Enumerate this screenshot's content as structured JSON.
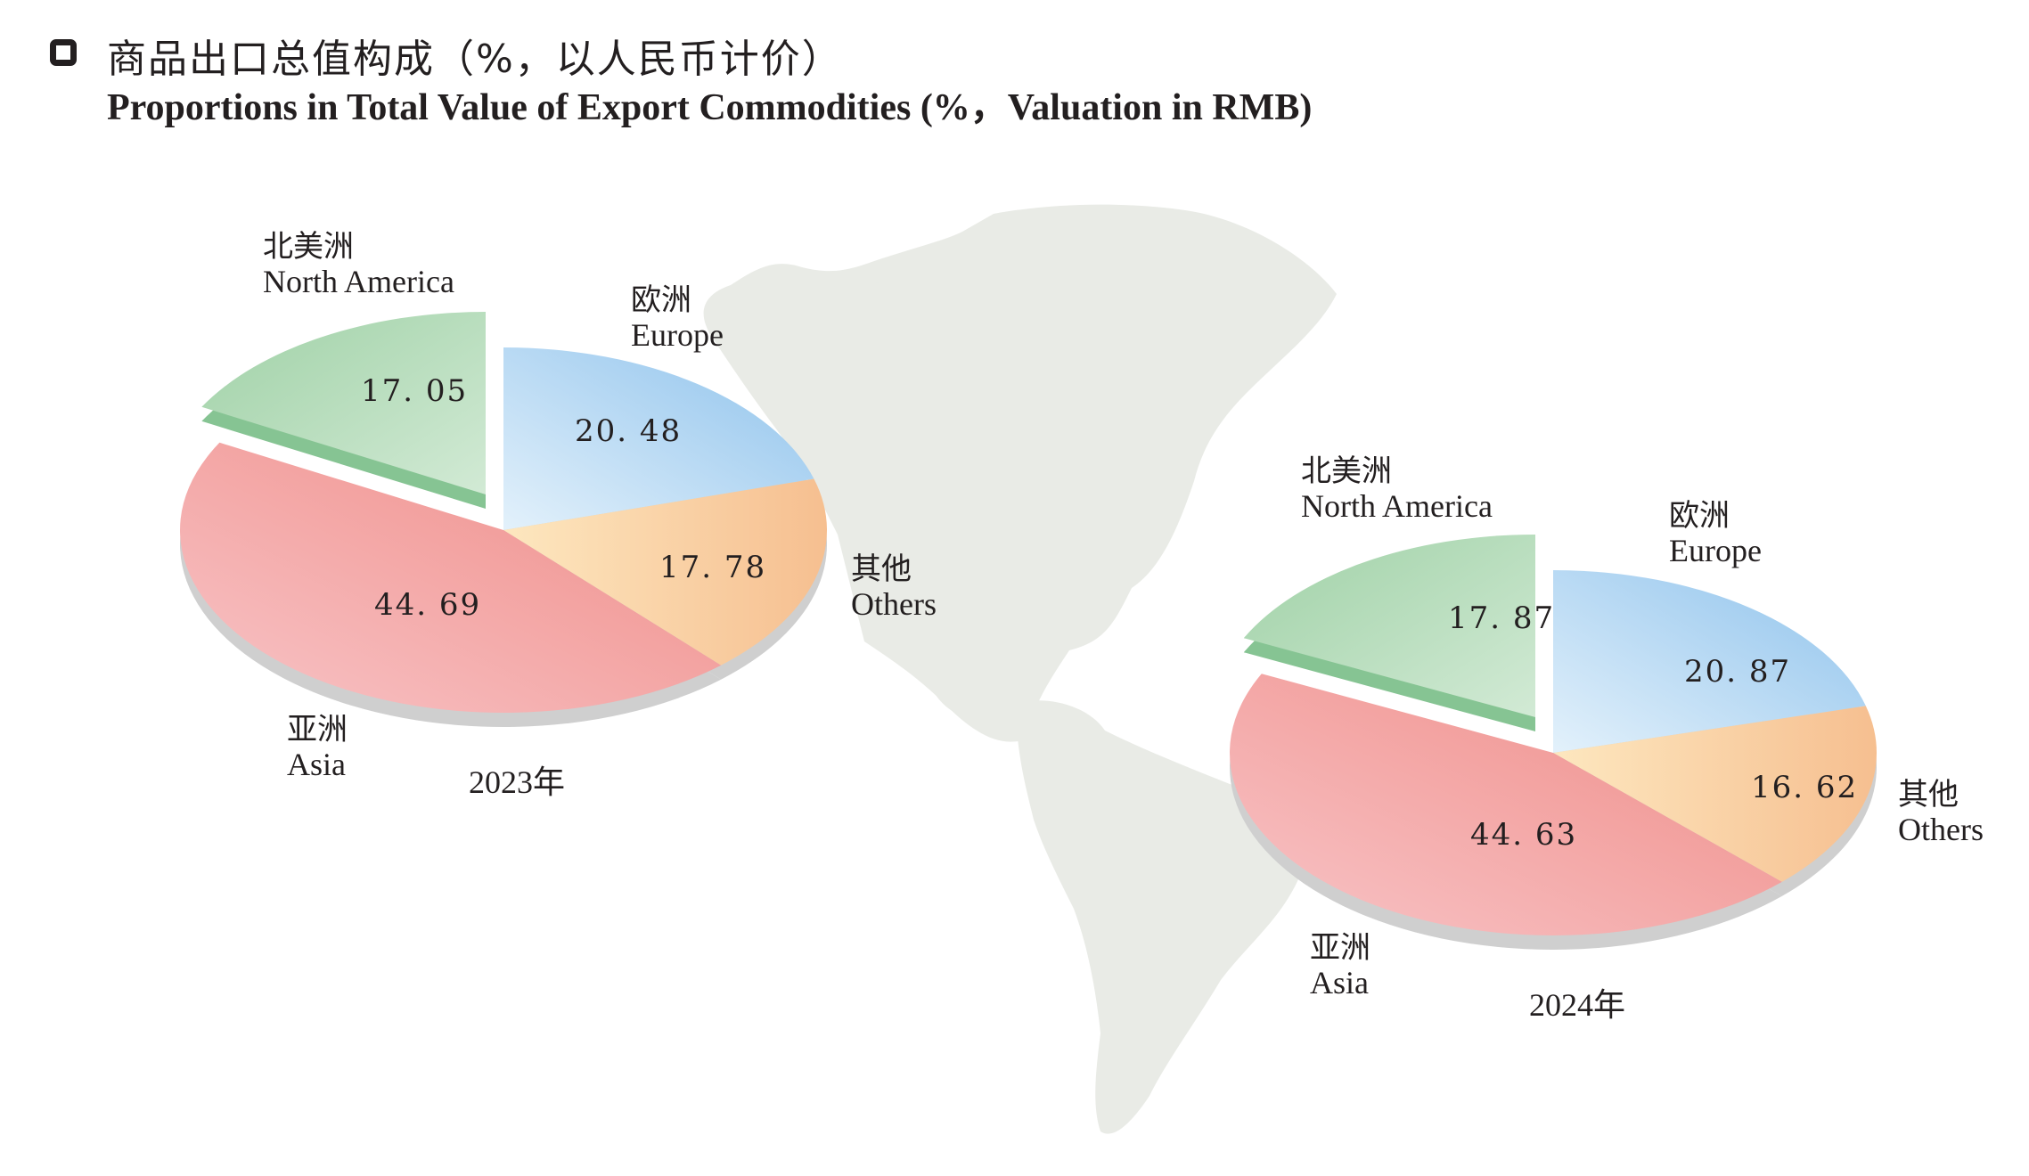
{
  "title": {
    "cn": "商品出口总值构成（%，以人民币计价）",
    "en": "Proportions in Total Value of Export Commodities (%，Valuation in RMB)"
  },
  "chart_data": [
    {
      "type": "pie",
      "year_label": "2023年",
      "slices": [
        {
          "key": "europe",
          "label_cn": "欧洲",
          "label_en": "Europe",
          "value": 20.48,
          "value_label": "20. 48",
          "color": "#a6cdef"
        },
        {
          "key": "others",
          "label_cn": "其他",
          "label_en": "Others",
          "value": 17.78,
          "value_label": "17. 78",
          "color": "#f8cfa3"
        },
        {
          "key": "asia",
          "label_cn": "亚洲",
          "label_en": "Asia",
          "value": 44.69,
          "value_label": "44. 69",
          "color": "#f29a9a"
        },
        {
          "key": "north_america",
          "label_cn": "北美洲",
          "label_en": "North America",
          "value": 17.05,
          "value_label": "17. 05",
          "color": "#b3dcbc",
          "exploded": true
        }
      ]
    },
    {
      "type": "pie",
      "year_label": "2024年",
      "slices": [
        {
          "key": "europe",
          "label_cn": "欧洲",
          "label_en": "Europe",
          "value": 20.87,
          "value_label": "20. 87",
          "color": "#a6cdef"
        },
        {
          "key": "others",
          "label_cn": "其他",
          "label_en": "Others",
          "value": 16.62,
          "value_label": "16. 62",
          "color": "#f8cfa3"
        },
        {
          "key": "asia",
          "label_cn": "亚洲",
          "label_en": "Asia",
          "value": 44.63,
          "value_label": "44. 63",
          "color": "#f29a9a"
        },
        {
          "key": "north_america",
          "label_cn": "北美洲",
          "label_en": "North America",
          "value": 17.87,
          "value_label": "17. 87",
          "color": "#b3dcbc",
          "exploded": true
        }
      ]
    }
  ]
}
